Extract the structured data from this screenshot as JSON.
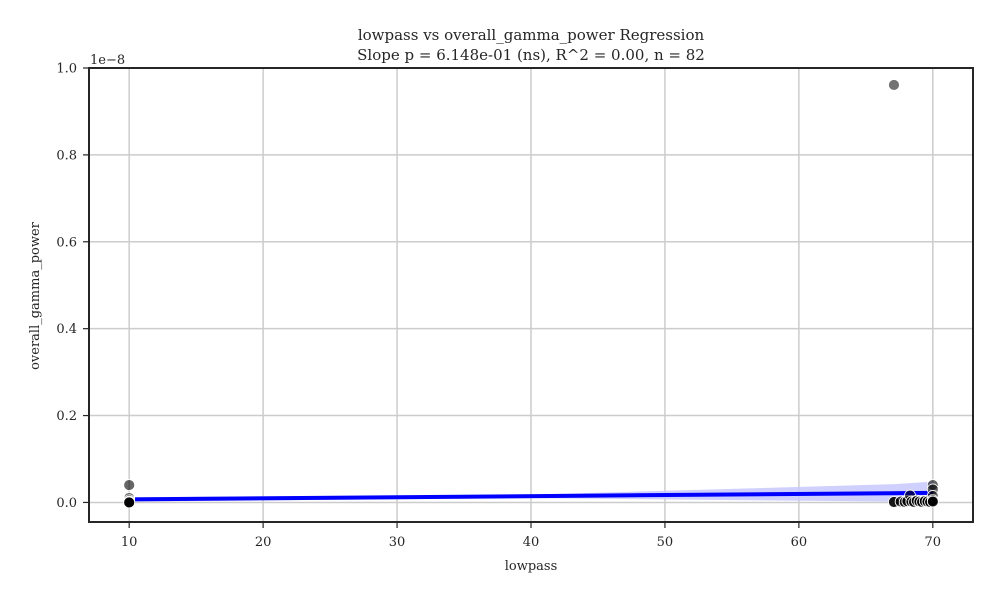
{
  "chart_data": {
    "type": "scatter",
    "title": "lowpass vs overall_gamma_power Regression",
    "subtitle": "Slope p = 6.148e-01 (ns), R^2 = 0.00, n = 82",
    "xlabel": "lowpass",
    "ylabel": "overall_gamma_power",
    "y_offset_label": "1e−8",
    "xlim": [
      7,
      73
    ],
    "ylim": [
      -0.045,
      1.0
    ],
    "x_ticks": [
      10,
      20,
      30,
      40,
      50,
      60,
      70
    ],
    "x_tick_labels": [
      "10",
      "20",
      "30",
      "40",
      "50",
      "60",
      "70"
    ],
    "y_ticks": [
      0.0,
      0.2,
      0.4,
      0.6,
      0.8,
      1.0
    ],
    "y_tick_labels": [
      "0.0",
      "0.2",
      "0.4",
      "0.6",
      "0.8",
      "1.0"
    ],
    "grid": true,
    "y_scale_note": "values in units of 1e-8",
    "colors": {
      "points": "#555555",
      "regression_line": "#0000ff",
      "confidence_band": "#c8c8ff",
      "grid": "#cccccc",
      "axes": "#262626"
    },
    "points": [
      {
        "x": 10,
        "y": 0.04,
        "alpha": 0.6
      },
      {
        "x": 10,
        "y": 0.01,
        "alpha": 0.6
      },
      {
        "x": 10,
        "y": 0.005,
        "alpha": 0.6
      },
      {
        "x": 10,
        "y": 0.002,
        "alpha": 0.9
      },
      {
        "x": 10,
        "y": 0.001,
        "alpha": 0.9
      },
      {
        "x": 10,
        "y": 0.0,
        "alpha": 0.95
      },
      {
        "x": 67.1,
        "y": 0.961,
        "alpha": 0.55
      },
      {
        "x": 67.1,
        "y": 0.001,
        "alpha": 0.9
      },
      {
        "x": 67.6,
        "y": 0.002,
        "alpha": 0.7
      },
      {
        "x": 67.9,
        "y": 0.001,
        "alpha": 0.7
      },
      {
        "x": 68.1,
        "y": 0.003,
        "alpha": 0.7
      },
      {
        "x": 68.3,
        "y": 0.016,
        "alpha": 0.6
      },
      {
        "x": 68.4,
        "y": 0.002,
        "alpha": 0.7
      },
      {
        "x": 68.6,
        "y": 0.001,
        "alpha": 0.7
      },
      {
        "x": 68.8,
        "y": 0.004,
        "alpha": 0.7
      },
      {
        "x": 69.0,
        "y": 0.002,
        "alpha": 0.7
      },
      {
        "x": 69.2,
        "y": 0.001,
        "alpha": 0.7
      },
      {
        "x": 69.4,
        "y": 0.003,
        "alpha": 0.7
      },
      {
        "x": 69.6,
        "y": 0.002,
        "alpha": 0.7
      },
      {
        "x": 69.8,
        "y": 0.001,
        "alpha": 0.8
      },
      {
        "x": 70,
        "y": 0.04,
        "alpha": 0.6
      },
      {
        "x": 70,
        "y": 0.03,
        "alpha": 0.6
      },
      {
        "x": 70,
        "y": 0.015,
        "alpha": 0.6
      },
      {
        "x": 70,
        "y": 0.005,
        "alpha": 0.8
      },
      {
        "x": 70,
        "y": 0.002,
        "alpha": 0.9
      }
    ],
    "regression": {
      "x": [
        10,
        70
      ],
      "y": [
        0.007,
        0.022
      ]
    },
    "confidence_band": {
      "x": [
        10,
        40,
        67,
        70
      ],
      "upper": [
        0.012,
        0.018,
        0.042,
        0.048
      ],
      "lower": [
        0.002,
        0.01,
        0.002,
        -0.003
      ]
    }
  }
}
